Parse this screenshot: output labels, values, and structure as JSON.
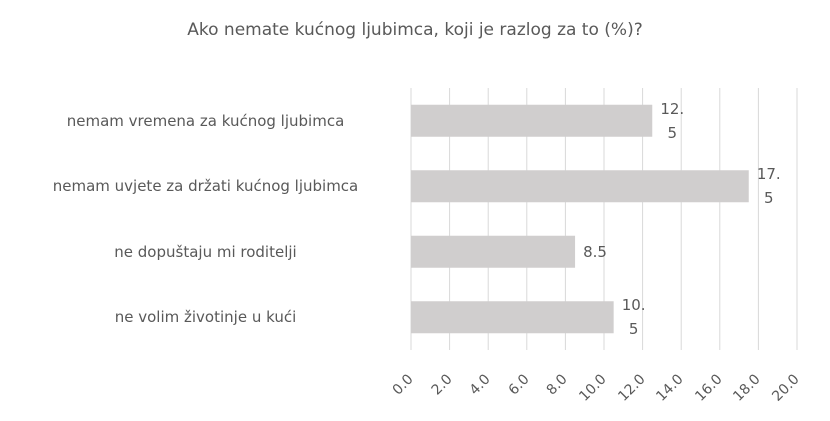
{
  "chart_data": {
    "type": "bar",
    "orientation": "horizontal",
    "title": "Ako nemate kućnog ljubimca, koji je razlog za to (%)?",
    "categories": [
      "nemam vremena za kućnog ljubimca",
      "nemam uvjete za držati kućnog ljubimca",
      "ne dopuštaju mi roditelji",
      "ne volim životinje u kući"
    ],
    "values": [
      12.5,
      17.5,
      8.5,
      10.5
    ],
    "color": "#d0cece",
    "xlim": [
      0,
      20
    ],
    "xticks": [
      {
        "value": 0,
        "label": "0.0"
      },
      {
        "value": 2,
        "label": "2.0"
      },
      {
        "value": 4,
        "label": "4.0"
      },
      {
        "value": 6,
        "label": "6.0"
      },
      {
        "value": 8,
        "label": "8.0"
      },
      {
        "value": 10,
        "label": "10.0"
      },
      {
        "value": 12,
        "label": "12.0"
      },
      {
        "value": 14,
        "label": "14.0"
      },
      {
        "value": 16,
        "label": "16.0"
      },
      {
        "value": 18,
        "label": "18.0"
      },
      {
        "value": 20,
        "label": "20.0"
      }
    ],
    "grid": true
  }
}
